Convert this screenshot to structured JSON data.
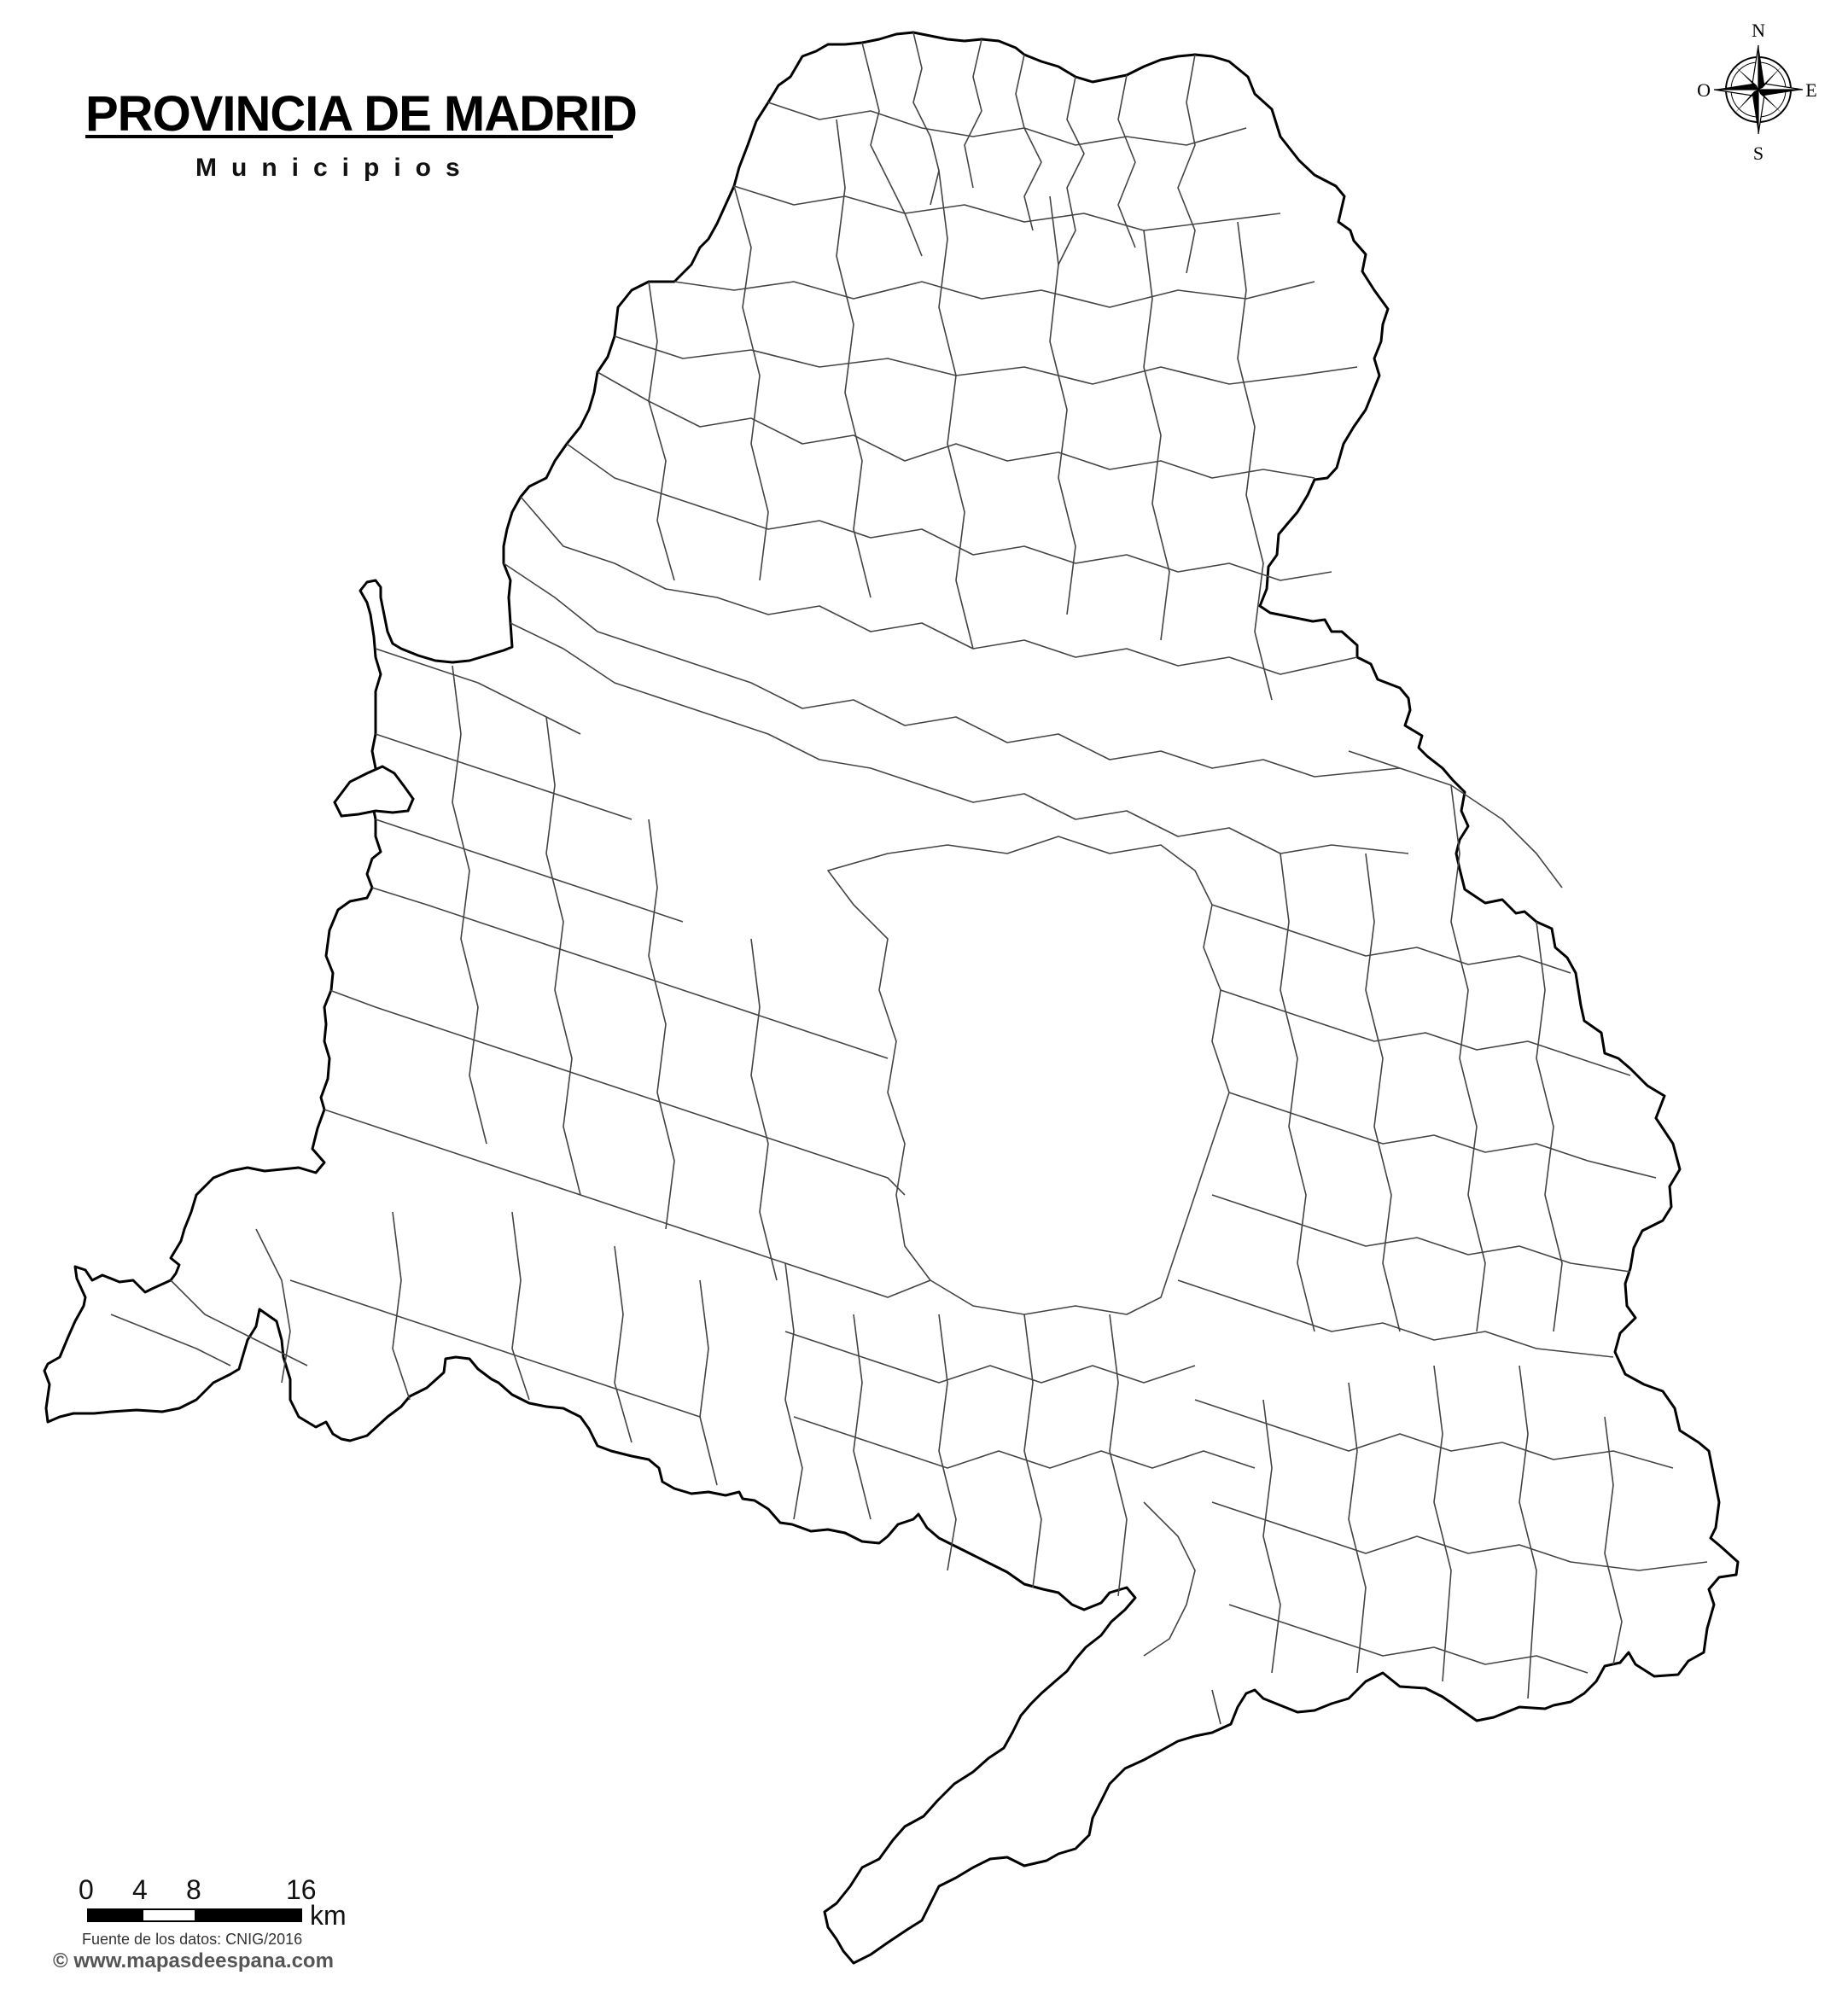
{
  "map": {
    "title": "PROVINCIA DE MADRID",
    "subtitle": "Municipios",
    "compass": {
      "north": "N",
      "south": "S",
      "east": "E",
      "west": "O"
    },
    "scale": {
      "ticks": [
        "0",
        "4",
        "8",
        "16"
      ],
      "unit": "km"
    },
    "source_note": "Fuente de los datos: CNIG/2016",
    "website": "© www.mapasdeespana.com"
  }
}
